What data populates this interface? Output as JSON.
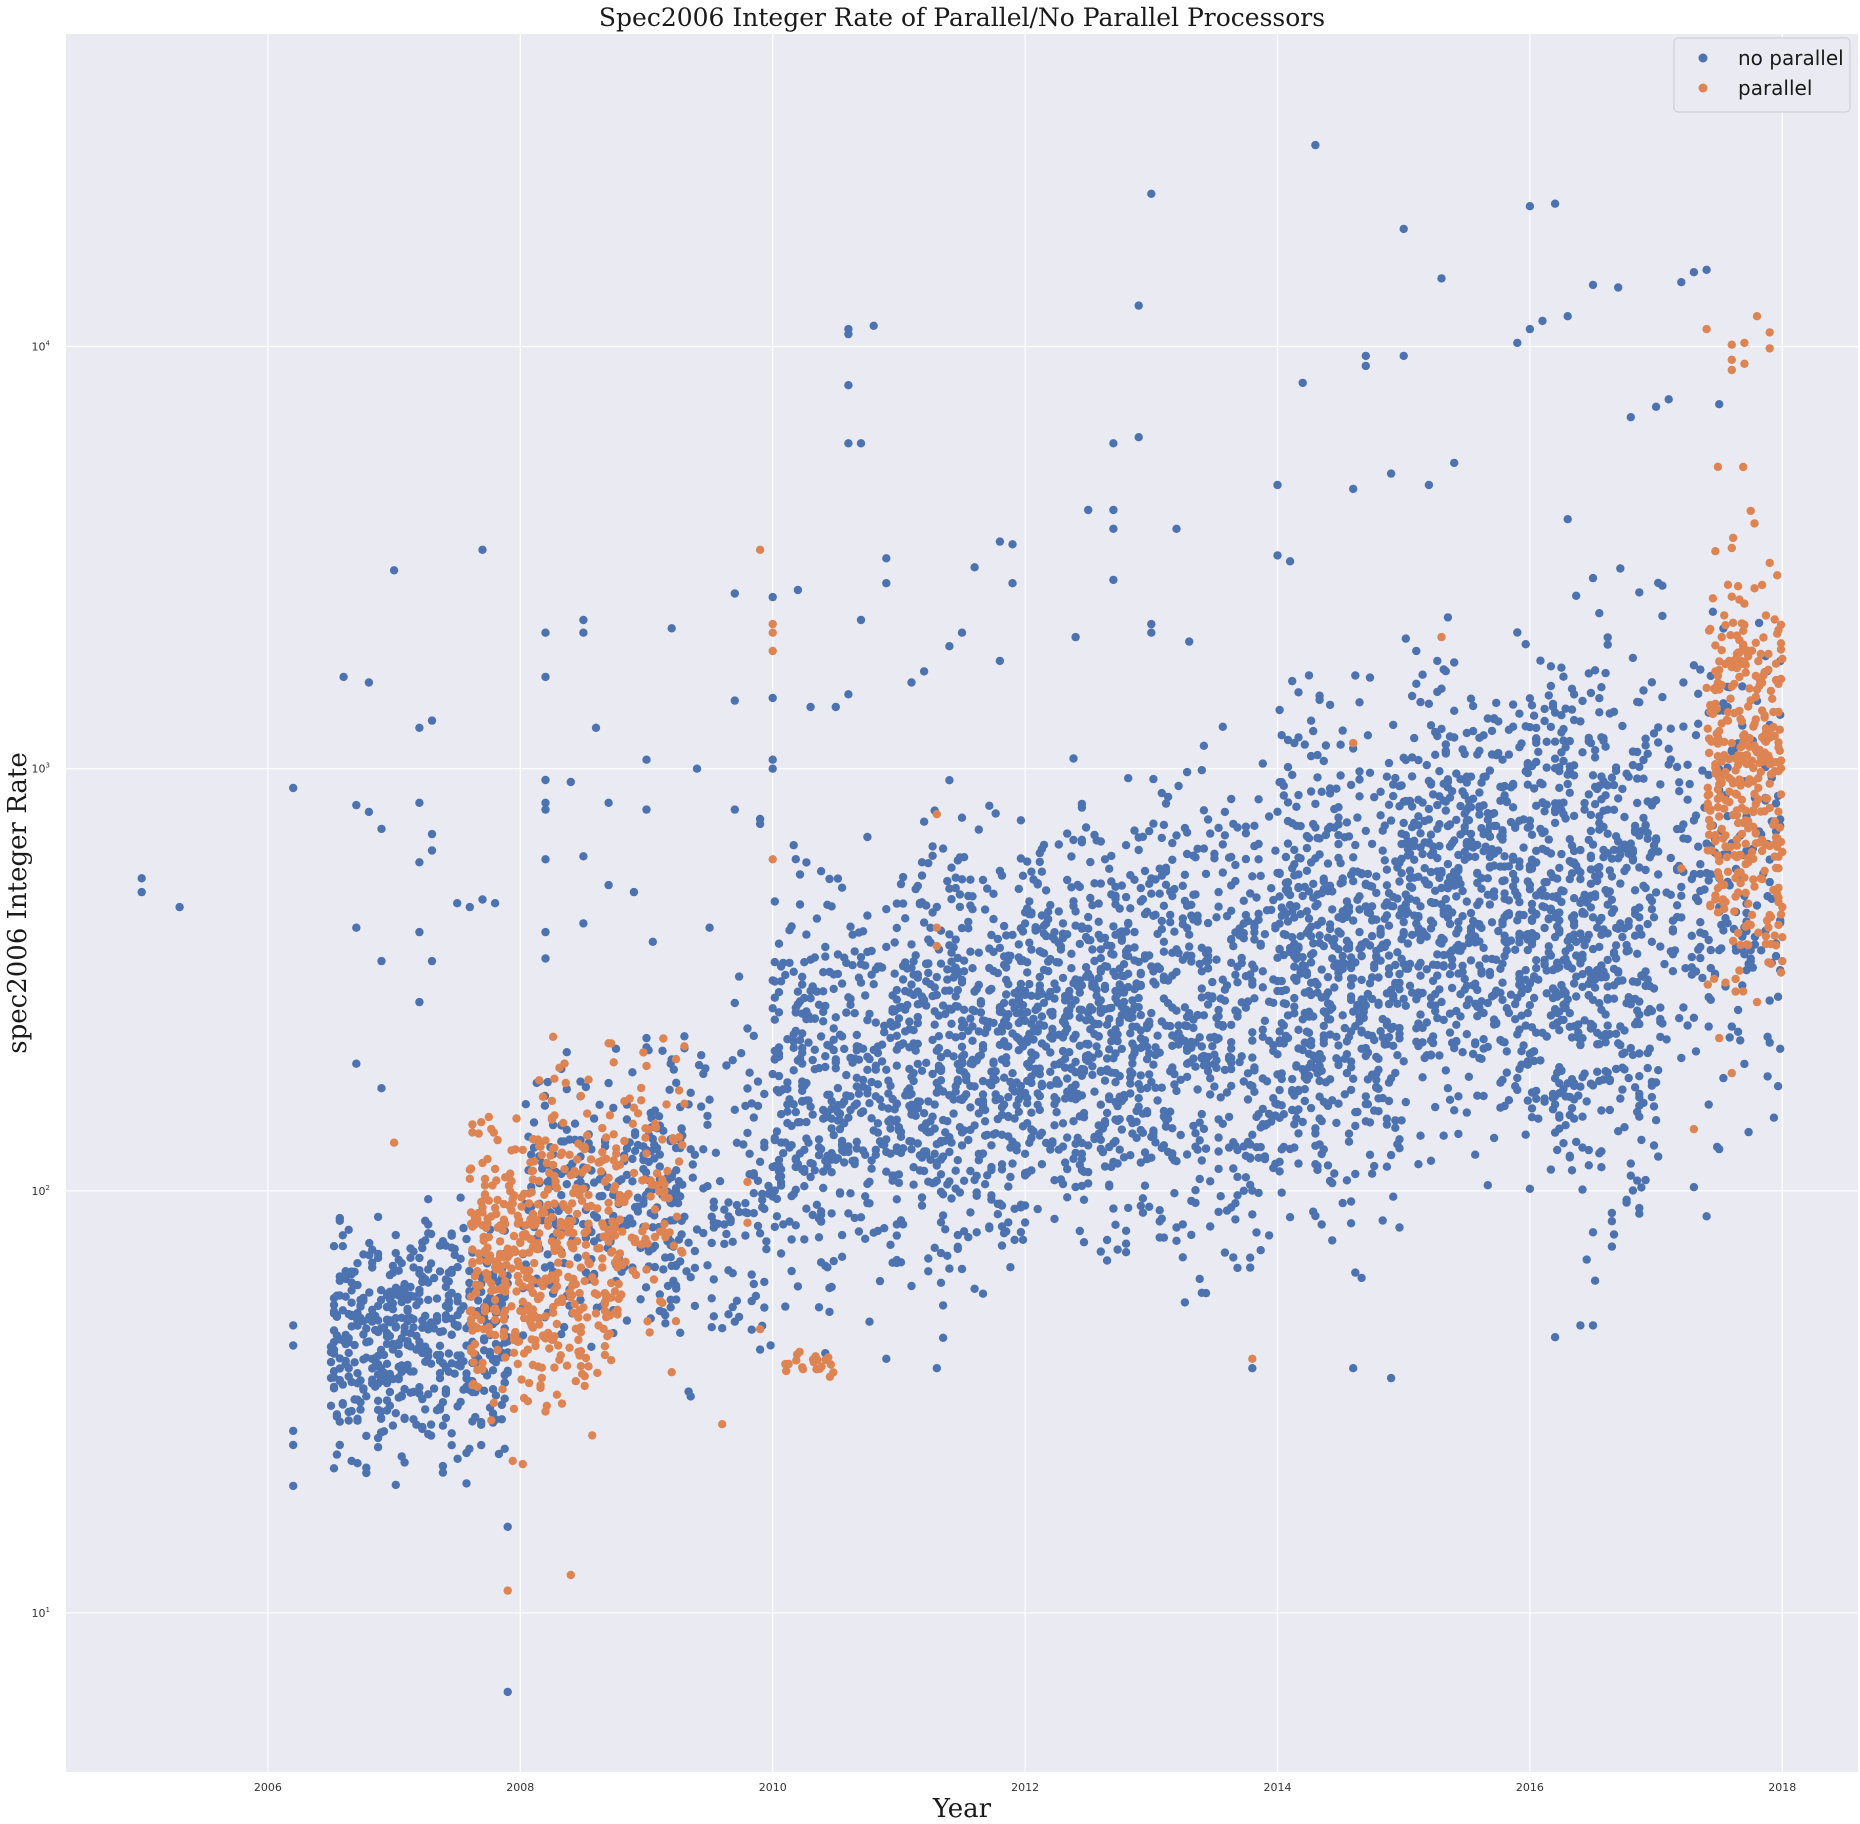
{
  "chart_data": {
    "type": "scatter",
    "title": "Spec2006 Integer Rate of Parallel/No Parallel Processors",
    "xlabel": "Year",
    "ylabel": "spec2006 Integer Rate",
    "x_scale": "linear",
    "y_scale": "log",
    "xlim": [
      2004.4,
      2018.6
    ],
    "ylim": [
      4.2,
      55000
    ],
    "x_ticks": [
      2006,
      2008,
      2010,
      2012,
      2014,
      2016,
      2018
    ],
    "x_tick_labels": [
      "2006",
      "2008",
      "2010",
      "2012",
      "2014",
      "2016",
      "2018"
    ],
    "y_ticks": [
      10,
      100,
      1000,
      10000
    ],
    "y_tick_labels": [
      {
        "base": "10",
        "exp": "1"
      },
      {
        "base": "10",
        "exp": "2"
      },
      {
        "base": "10",
        "exp": "3"
      },
      {
        "base": "10",
        "exp": "4"
      }
    ],
    "grid": true,
    "legend_position": "top-right",
    "background": "#eaeaf2",
    "series": [
      {
        "name": "no parallel",
        "color": "#4c72b0",
        "points": [
          [
            2005.0,
            550
          ],
          [
            2005.0,
            510
          ],
          [
            2005.3,
            470
          ],
          [
            2006.2,
            900
          ],
          [
            2006.2,
            48
          ],
          [
            2006.2,
            43
          ],
          [
            2006.2,
            27
          ],
          [
            2006.2,
            25
          ],
          [
            2006.2,
            20
          ],
          [
            2006.6,
            1650
          ],
          [
            2006.7,
            820
          ],
          [
            2006.7,
            420
          ],
          [
            2006.7,
            200
          ],
          [
            2006.8,
            1600
          ],
          [
            2006.8,
            790
          ],
          [
            2006.9,
            720
          ],
          [
            2006.9,
            350
          ],
          [
            2006.9,
            175
          ],
          [
            2007.0,
            2950
          ],
          [
            2007.2,
            1250
          ],
          [
            2007.2,
            830
          ],
          [
            2007.3,
            1300
          ],
          [
            2007.3,
            700
          ],
          [
            2007.3,
            640
          ],
          [
            2007.2,
            600
          ],
          [
            2007.3,
            350
          ],
          [
            2007.2,
            410
          ],
          [
            2007.2,
            280
          ],
          [
            2007.5,
            480
          ],
          [
            2007.6,
            470
          ],
          [
            2007.7,
            3300
          ],
          [
            2007.7,
            490
          ],
          [
            2007.8,
            480
          ],
          [
            2008.2,
            2100
          ],
          [
            2008.2,
            1650
          ],
          [
            2008.2,
            940
          ],
          [
            2008.2,
            830
          ],
          [
            2008.2,
            800
          ],
          [
            2008.2,
            610
          ],
          [
            2008.2,
            410
          ],
          [
            2008.2,
            355
          ],
          [
            2008.4,
            930
          ],
          [
            2008.5,
            2250
          ],
          [
            2008.5,
            2100
          ],
          [
            2008.5,
            620
          ],
          [
            2008.5,
            430
          ],
          [
            2008.6,
            1250
          ],
          [
            2008.7,
            830
          ],
          [
            2008.7,
            530
          ],
          [
            2008.9,
            510
          ],
          [
            2009.0,
            1050
          ],
          [
            2009.0,
            800
          ],
          [
            2009.2,
            2150
          ],
          [
            2009.4,
            1000
          ],
          [
            2009.7,
            2600
          ],
          [
            2009.7,
            1450
          ],
          [
            2009.7,
            800
          ],
          [
            2009.9,
            760
          ],
          [
            2009.9,
            740
          ],
          [
            2010.0,
            2550
          ],
          [
            2010.0,
            1470
          ],
          [
            2010.0,
            1050
          ],
          [
            2010.0,
            1000
          ],
          [
            2010.2,
            2650
          ],
          [
            2010.3,
            1400
          ],
          [
            2010.5,
            1400
          ],
          [
            2010.6,
            1500
          ],
          [
            2010.6,
            11000
          ],
          [
            2010.6,
            10700
          ],
          [
            2010.6,
            8100
          ],
          [
            2010.6,
            5900
          ],
          [
            2010.7,
            5900
          ],
          [
            2010.7,
            2250
          ],
          [
            2010.8,
            11200
          ],
          [
            2010.9,
            3150
          ],
          [
            2010.9,
            2750
          ],
          [
            2011.1,
            1600
          ],
          [
            2011.2,
            1700
          ],
          [
            2011.4,
            1950
          ],
          [
            2011.5,
            2100
          ],
          [
            2011.6,
            3000
          ],
          [
            2011.8,
            1800
          ],
          [
            2011.8,
            3450
          ],
          [
            2011.9,
            3400
          ],
          [
            2011.9,
            2750
          ],
          [
            2012.4,
            2050
          ],
          [
            2012.5,
            4100
          ],
          [
            2012.7,
            4100
          ],
          [
            2012.7,
            3700
          ],
          [
            2012.7,
            2800
          ],
          [
            2012.7,
            5900
          ],
          [
            2012.9,
            6100
          ],
          [
            2012.9,
            12500
          ],
          [
            2013.0,
            23000
          ],
          [
            2013.0,
            2200
          ],
          [
            2013.0,
            2100
          ],
          [
            2013.2,
            3700
          ],
          [
            2013.3,
            2000
          ],
          [
            2014.0,
            4700
          ],
          [
            2014.0,
            3200
          ],
          [
            2014.1,
            3100
          ],
          [
            2014.2,
            8200
          ],
          [
            2014.3,
            30000
          ],
          [
            2014.6,
            4600
          ],
          [
            2014.7,
            9500
          ],
          [
            2014.7,
            9000
          ],
          [
            2014.9,
            5000
          ],
          [
            2015.0,
            19000
          ],
          [
            2015.0,
            9500
          ],
          [
            2015.2,
            4700
          ],
          [
            2015.3,
            14500
          ],
          [
            2015.4,
            5300
          ],
          [
            2015.9,
            10200
          ],
          [
            2016.0,
            11000
          ],
          [
            2016.0,
            21500
          ],
          [
            2016.1,
            11500
          ],
          [
            2016.2,
            21800
          ],
          [
            2016.3,
            11800
          ],
          [
            2016.3,
            3900
          ],
          [
            2016.5,
            14000
          ],
          [
            2016.7,
            13800
          ],
          [
            2016.8,
            6800
          ],
          [
            2017.0,
            7200
          ],
          [
            2017.1,
            7500
          ],
          [
            2017.2,
            14200
          ],
          [
            2017.3,
            15000
          ],
          [
            2017.4,
            15200
          ],
          [
            2017.5,
            7300
          ],
          [
            2007.9,
            16
          ],
          [
            2007.9,
            6.5
          ],
          [
            2008.7,
            180
          ],
          [
            2009.0,
            230
          ],
          [
            2009.5,
            420
          ],
          [
            2010.9,
            40
          ],
          [
            2011.3,
            38
          ],
          [
            2013.8,
            38
          ],
          [
            2014.6,
            38
          ],
          [
            2014.9,
            36
          ],
          [
            2016.2,
            45
          ],
          [
            2016.4,
            48
          ],
          [
            2016.5,
            48
          ],
          [
            2017.3,
            102
          ],
          [
            2017.4,
            87
          ]
        ],
        "clusters": [
          {
            "x": [
              2006.5,
              2007.9
            ],
            "y": [
              18,
              110
            ],
            "n": 520
          },
          {
            "x": [
              2008.0,
              2009.3
            ],
            "y": [
              35,
              260
            ],
            "n": 260
          },
          {
            "x": [
              2009.0,
              2010.0
            ],
            "y": [
              25,
              450
            ],
            "n": 170
          },
          {
            "x": [
              2010.0,
              2011.0
            ],
            "y": [
              35,
              820
            ],
            "n": 420
          },
          {
            "x": [
              2011.0,
              2012.0
            ],
            "y": [
              40,
              1150
            ],
            "n": 520
          },
          {
            "x": [
              2012.0,
              2013.0
            ],
            "y": [
              50,
              1250
            ],
            "n": 560
          },
          {
            "x": [
              2013.0,
              2014.0
            ],
            "y": [
              38,
              1750
            ],
            "n": 420
          },
          {
            "x": [
              2014.0,
              2015.0
            ],
            "y": [
              50,
              2500
            ],
            "n": 600
          },
          {
            "x": [
              2015.0,
              2016.0
            ],
            "y": [
              80,
              2900
            ],
            "n": 560
          },
          {
            "x": [
              2016.0,
              2017.0
            ],
            "y": [
              45,
              4000
            ],
            "n": 620
          },
          {
            "x": [
              2017.0,
              2018.0
            ],
            "y": [
              90,
              3500
            ],
            "n": 240
          }
        ]
      },
      {
        "name": "parallel",
        "color": "#dd8452",
        "points": [
          [
            2007.0,
            130
          ],
          [
            2007.9,
            11.3
          ],
          [
            2008.2,
            30
          ],
          [
            2008.4,
            12.3
          ],
          [
            2009.9,
            3300
          ],
          [
            2010.0,
            2200
          ],
          [
            2010.0,
            2100
          ],
          [
            2010.0,
            1900
          ],
          [
            2010.0,
            610
          ],
          [
            2009.9,
            47
          ],
          [
            2009.8,
            105
          ],
          [
            2009.6,
            28
          ],
          [
            2009.8,
            84
          ],
          [
            2011.3,
            780
          ],
          [
            2011.3,
            420
          ],
          [
            2011.3,
            380
          ],
          [
            2013.8,
            40
          ],
          [
            2014.6,
            1150
          ],
          [
            2015.3,
            2050
          ],
          [
            2017.2,
            580
          ],
          [
            2017.3,
            140
          ],
          [
            2017.4,
            11000
          ],
          [
            2017.6,
            10100
          ],
          [
            2017.6,
            9300
          ],
          [
            2017.6,
            8800
          ],
          [
            2017.7,
            9100
          ],
          [
            2017.7,
            10200
          ],
          [
            2017.8,
            11800
          ],
          [
            2017.9,
            10800
          ],
          [
            2017.9,
            9900
          ],
          [
            2017.8,
            280
          ],
          [
            2017.9,
            450
          ],
          [
            2018.0,
            350
          ],
          [
            2018.0,
            470
          ],
          [
            2017.5,
            230
          ],
          [
            2017.6,
            190
          ]
        ],
        "clusters": [
          {
            "x": [
              2007.6,
              2008.2
            ],
            "y": [
              21,
              210
            ],
            "n": 280
          },
          {
            "x": [
              2008.2,
              2008.8
            ],
            "y": [
              21,
              290
            ],
            "n": 240
          },
          {
            "x": [
              2008.8,
              2009.3
            ],
            "y": [
              25,
              400
            ],
            "n": 80
          },
          {
            "x": [
              2010.1,
              2010.5
            ],
            "y": [
              35,
              43
            ],
            "n": 20
          },
          {
            "x": [
              2017.4,
              2018.0
            ],
            "y": [
              200,
              5500
            ],
            "n": 380
          }
        ]
      }
    ]
  }
}
